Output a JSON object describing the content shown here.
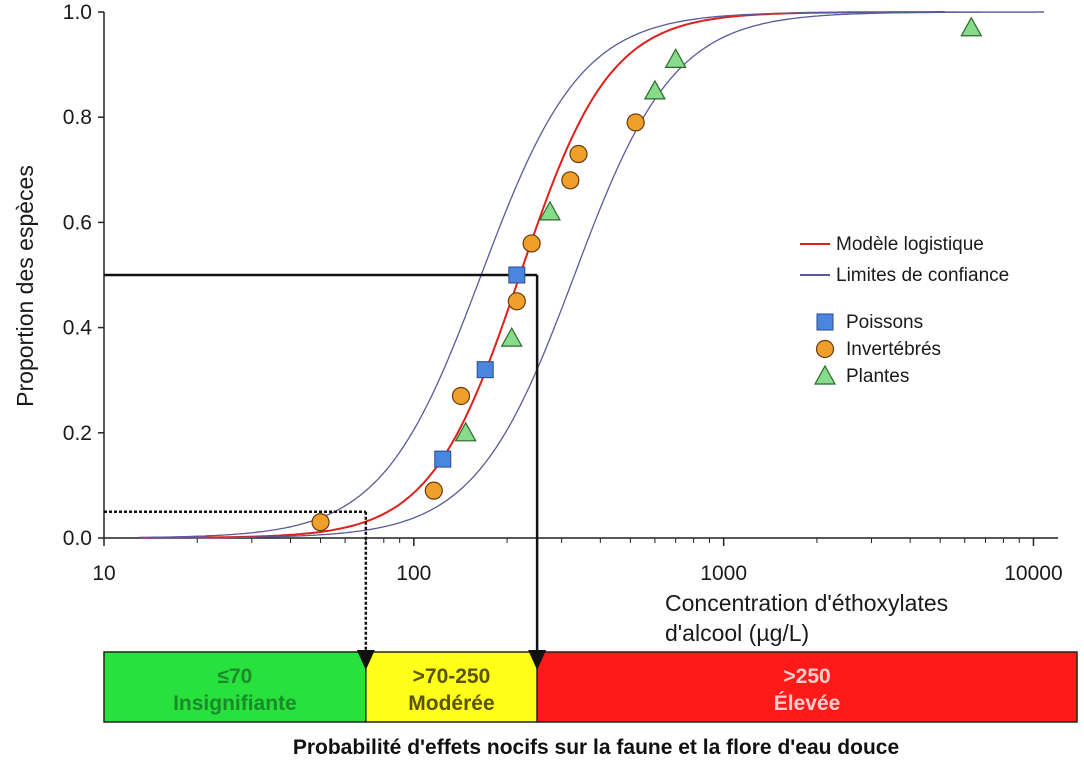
{
  "chart_data": {
    "type": "scatter",
    "xlabel_lines": [
      "Concentration d'éthoxylates",
      "d'alcool (µg/L)"
    ],
    "ylabel": "Proportion des espèces",
    "x_scale": "log",
    "xlim": [
      10,
      12000
    ],
    "ylim": [
      0,
      1.0
    ],
    "x_ticks": [
      10,
      100,
      1000,
      10000
    ],
    "x_tick_labels": [
      "10",
      "100",
      "1000",
      "10000"
    ],
    "y_ticks": [
      0,
      0.2,
      0.4,
      0.6,
      0.8,
      1.0
    ],
    "y_tick_labels": [
      "0.0",
      "0.2",
      "0.4",
      "0.6",
      "0.8",
      "1.0"
    ],
    "legend_placement": "right",
    "lines": [
      {
        "name": "Modèle logistique",
        "color": "#e0201c",
        "x50": 220,
        "slope": 3.0
      },
      {
        "name": "Limites de confiance",
        "color": "#5a5a9a",
        "x50": 165,
        "slope": 2.7
      },
      {
        "name": "",
        "color": "#5a5a9a",
        "x50": 330,
        "slope": 2.7
      }
    ],
    "series": [
      {
        "name": "Poissons",
        "marker": "square",
        "color": "#4a86e0",
        "points": [
          [
            124,
            0.15
          ],
          [
            170,
            0.32
          ],
          [
            215,
            0.5
          ]
        ]
      },
      {
        "name": "Invertébrés",
        "marker": "circle",
        "color": "#f0a02a",
        "points": [
          [
            50,
            0.03
          ],
          [
            116,
            0.09
          ],
          [
            142,
            0.27
          ],
          [
            215,
            0.45
          ],
          [
            240,
            0.56
          ],
          [
            320,
            0.68
          ],
          [
            340,
            0.73
          ],
          [
            520,
            0.79
          ]
        ]
      },
      {
        "name": "Plantes",
        "marker": "triangle",
        "color": "#86dc8a",
        "points": [
          [
            147,
            0.2
          ],
          [
            207,
            0.38
          ],
          [
            275,
            0.62
          ],
          [
            600,
            0.85
          ],
          [
            700,
            0.91
          ],
          [
            6300,
            0.97
          ]
        ]
      }
    ],
    "reference_lines": [
      {
        "style": "dashed",
        "x": 70,
        "y": 0.05
      },
      {
        "style": "solid",
        "x": 250,
        "y": 0.5
      }
    ]
  },
  "bands": [
    {
      "line1": "≤70",
      "line2": "Insignifiante",
      "bg": "#29e13c",
      "fg": "#1a8a2a"
    },
    {
      "line1": ">70-250",
      "line2": "Modérée",
      "bg": "#ffff1a",
      "fg": "#5a5400"
    },
    {
      "line1": ">250",
      "line2": "Élevée",
      "bg": "#ff1a1a",
      "fg": "#ffcccc"
    }
  ],
  "footer": "Probabilité d'effets nocifs sur la faune et la flore d'eau douce"
}
